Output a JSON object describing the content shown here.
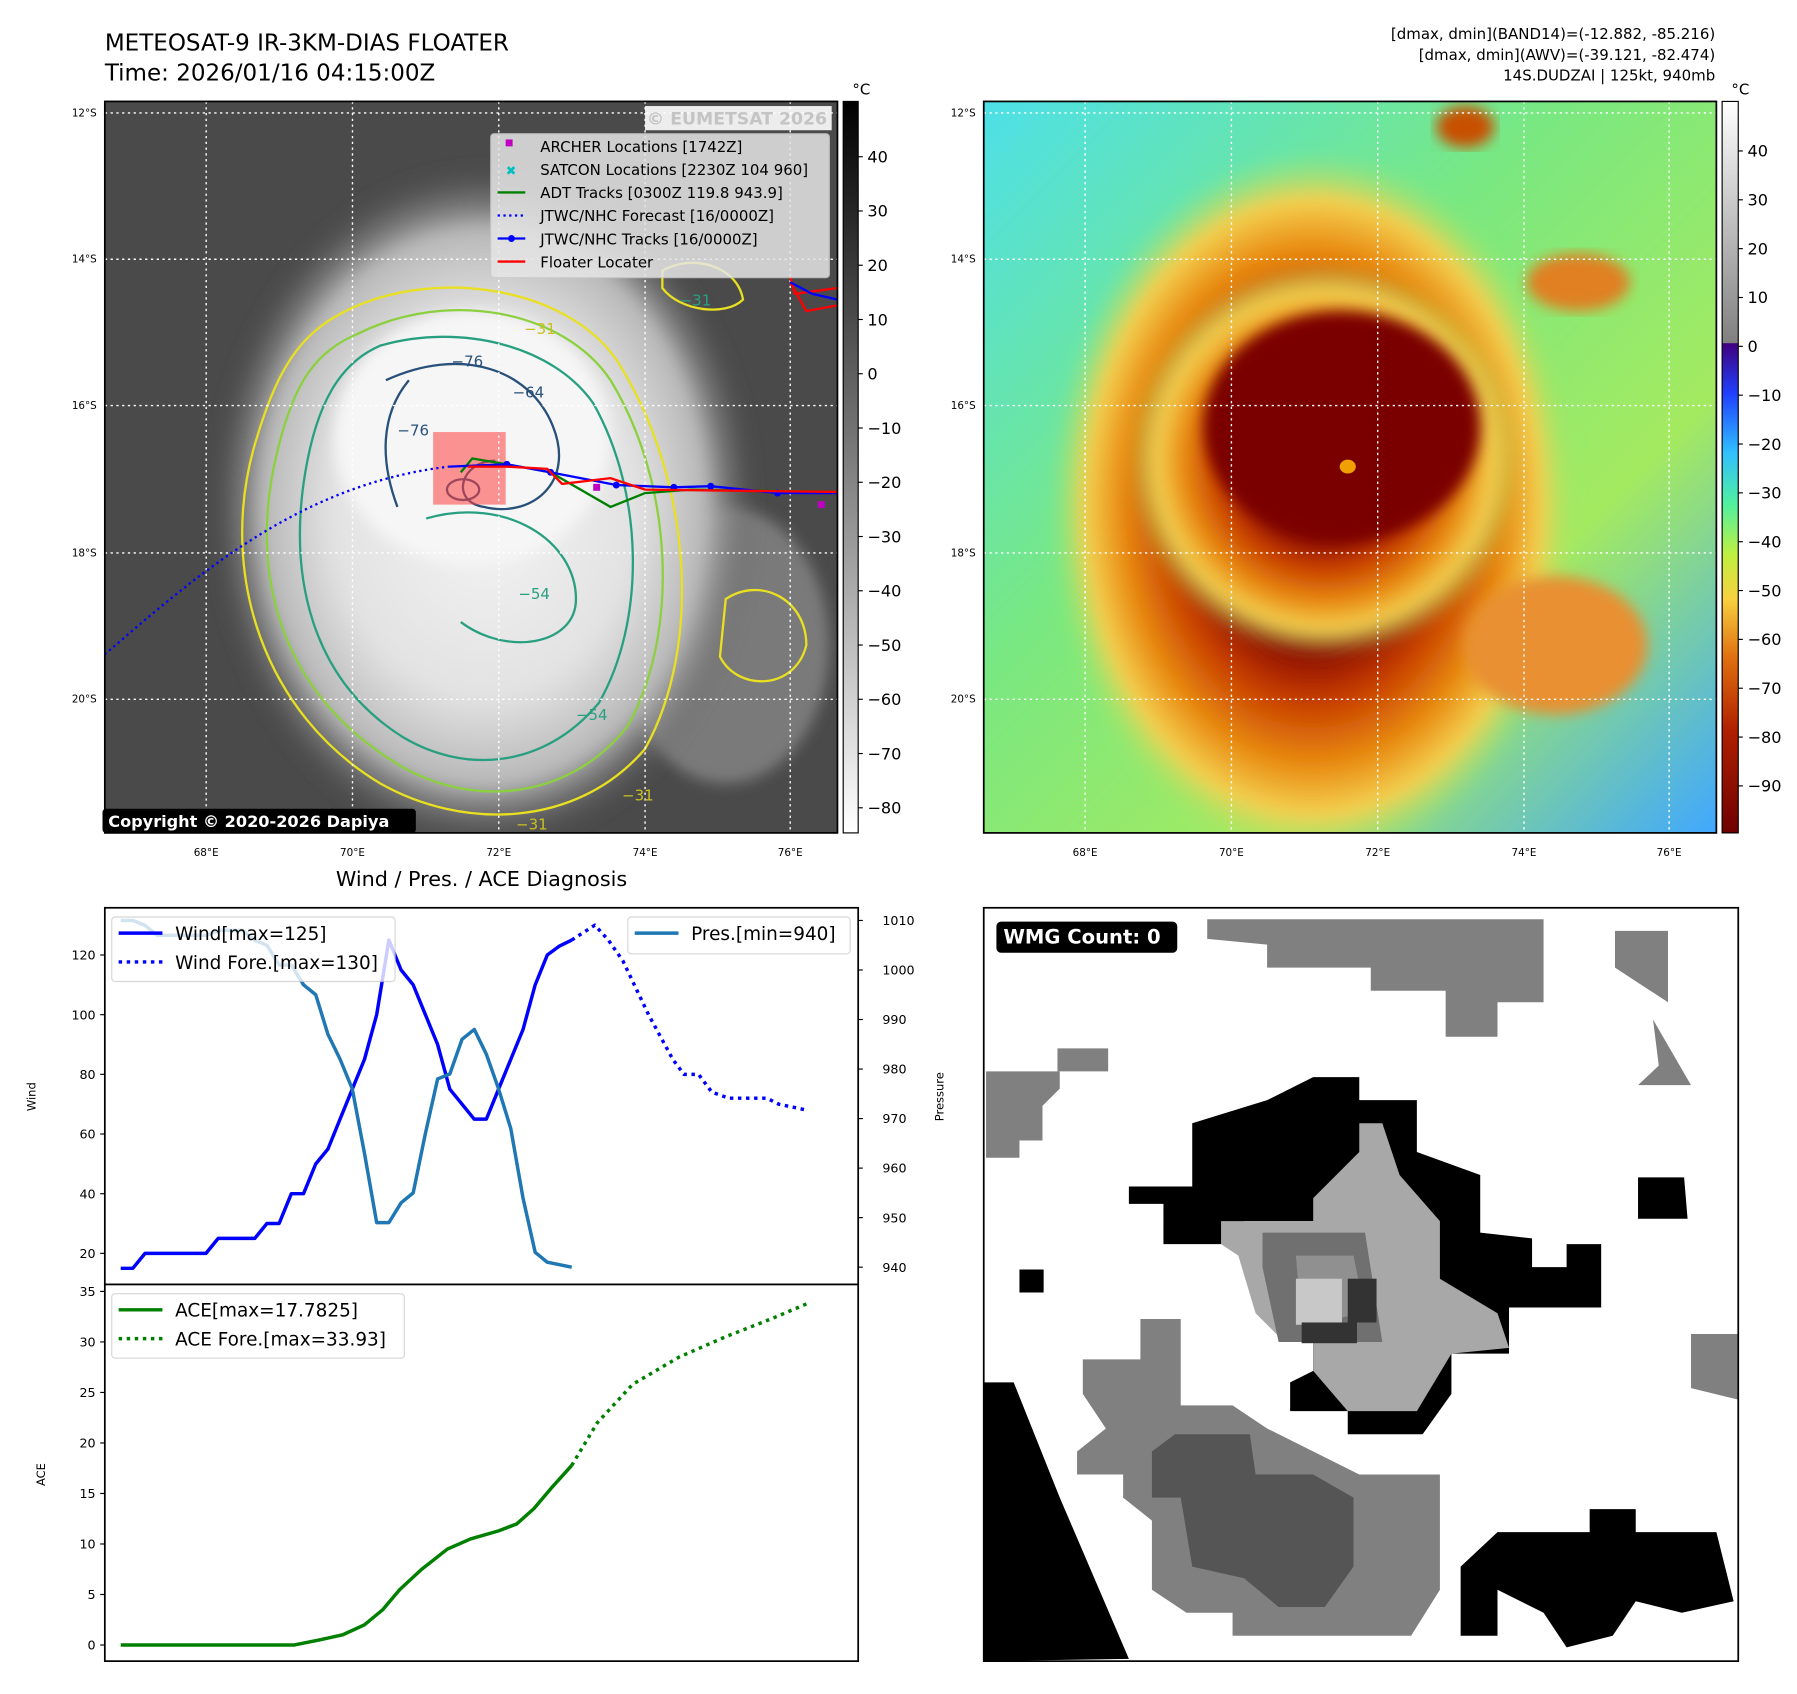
{
  "header": {
    "title_line1": "METEOSAT-9 IR-3KM-DIAS FLOATER",
    "title_line2": "Time: 2026/01/16 04:15:00Z",
    "info_line1": "[dmax, dmin](BAND14)=(-12.882, -85.216)",
    "info_line2": "[dmax, dmin](AWV)=(-39.121, -82.474)",
    "info_line3": "14S.DUDZAI | 125kt, 940mb"
  },
  "ir_map": {
    "lat_labels": [
      "12°S",
      "14°S",
      "16°S",
      "18°S",
      "20°S"
    ],
    "lon_labels": [
      "68°E",
      "70°E",
      "72°E",
      "74°E",
      "76°E"
    ],
    "watermark": "© EUMETSAT 2026",
    "copyright": "Copyright © 2020-2026 Dapiya",
    "contour_labels": [
      "−76",
      "−64",
      "−76",
      "−54",
      "−31",
      "−31",
      "−31",
      "−54",
      "−31"
    ],
    "legend": [
      {
        "label": "ARCHER Locations [1742Z]",
        "color": "#c000c0"
      },
      {
        "label": "SATCON Locations [2230Z 104 960]",
        "color": "#00c0c0"
      },
      {
        "label": "ADT Tracks [0300Z 119.8 943.9]",
        "color": "#008000"
      },
      {
        "label": "JTWC/NHC Forecast [16/0000Z]",
        "color": "#0000ff"
      },
      {
        "label": "JTWC/NHC Tracks [16/0000Z]",
        "color": "#0000ff"
      },
      {
        "label": "Floater Locater",
        "color": "#ff0000"
      }
    ],
    "colorbar_unit": "°C",
    "colorbar_ticks": [
      "40",
      "30",
      "20",
      "10",
      "0",
      "−10",
      "−20",
      "−30",
      "−40",
      "−50",
      "−60",
      "−70",
      "−80"
    ]
  },
  "awv_map": {
    "lat_labels": [
      "12°S",
      "14°S",
      "16°S",
      "18°S",
      "20°S"
    ],
    "lon_labels": [
      "68°E",
      "70°E",
      "72°E",
      "74°E",
      "76°E"
    ],
    "colorbar_unit": "°C",
    "colorbar_ticks": [
      "40",
      "30",
      "20",
      "10",
      "0",
      "−10",
      "−20",
      "−30",
      "−40",
      "−50",
      "−60",
      "−70",
      "−80",
      "−90"
    ]
  },
  "wmg": {
    "badge": "WMG Count: 0"
  },
  "chart_data": [
    {
      "type": "line",
      "title": "Wind / Pres. / ACE Diagnosis",
      "ylabel": "Wind",
      "y2label": "Pressure",
      "ylim": [
        12,
        134
      ],
      "y2lim": [
        937,
        1012
      ],
      "yticks": [
        20,
        40,
        60,
        80,
        100,
        120
      ],
      "y2ticks": [
        940,
        950,
        960,
        970,
        980,
        990,
        1000,
        1010
      ],
      "xlim": [
        -1.3,
        60.5
      ],
      "legend_left": [
        "Wind[max=125]",
        "Wind Fore.[max=130]"
      ],
      "legend_right": [
        "Pres.[min=940]"
      ],
      "series": [
        {
          "name": "Wind[max=125]",
          "color": "#0000ff",
          "style": "solid",
          "x": [
            0,
            1,
            2,
            3,
            4,
            5,
            6,
            7,
            8,
            9,
            10,
            11,
            12,
            13,
            14,
            15,
            16,
            17,
            18,
            19,
            20,
            21,
            22,
            23,
            24,
            25,
            26,
            27,
            28,
            29,
            30,
            31,
            32,
            33,
            34,
            35,
            36,
            37
          ],
          "values": [
            15,
            15,
            20,
            20,
            20,
            20,
            20,
            20,
            25,
            25,
            25,
            25,
            30,
            30,
            40,
            40,
            50,
            55,
            65,
            75,
            85,
            100,
            125,
            115,
            110,
            100,
            90,
            75,
            70,
            65,
            65,
            75,
            85,
            95,
            110,
            120,
            123,
            125
          ]
        },
        {
          "name": "Wind Fore.[max=130]",
          "color": "#0000ff",
          "style": "dotted",
          "x": [
            37,
            38.9,
            40,
            41.2,
            43.3,
            45.3,
            46.2,
            47.4,
            48.5,
            49.9,
            51.9,
            53,
            54,
            56.3
          ],
          "values": [
            125,
            130,
            125,
            118,
            100,
            85,
            80,
            80,
            74,
            72,
            72,
            72,
            70,
            68
          ]
        },
        {
          "name": "Pres.[min=940]",
          "color": "#1f77b4",
          "style": "solid",
          "axis": "y2",
          "x": [
            0,
            1,
            2,
            3,
            4,
            5,
            6,
            7,
            8,
            9,
            10,
            11,
            12,
            13,
            14,
            15,
            16,
            17,
            18,
            19,
            20,
            21,
            22,
            23,
            24,
            25,
            26,
            27,
            28,
            29,
            30,
            31,
            32,
            33,
            34,
            35,
            36,
            37
          ],
          "values": [
            1010,
            1010,
            1009,
            1007,
            1007,
            1007,
            1007,
            1007,
            1008,
            1008,
            1008,
            1006,
            1005,
            1001,
            1001,
            997,
            995,
            987,
            982,
            976,
            963,
            949,
            949,
            953,
            955,
            967,
            978,
            979,
            986,
            988,
            983,
            976,
            968,
            954,
            943,
            941,
            940.5,
            940
          ]
        }
      ]
    },
    {
      "type": "line",
      "ylabel": "ACE",
      "ylim": [
        -1.5,
        35
      ],
      "yticks": [
        0,
        5,
        10,
        15,
        20,
        25,
        30,
        35
      ],
      "xlim": [
        -1.3,
        60.5
      ],
      "legend": [
        "ACE[max=17.7825]",
        "ACE Fore.[max=33.93]"
      ],
      "series": [
        {
          "name": "ACE[max=17.7825]",
          "color": "#008000",
          "style": "solid",
          "x": [
            0,
            4,
            8,
            12,
            14.2,
            16.3,
            18.2,
            20,
            21.5,
            22.9,
            24.7,
            26.8,
            28.7,
            31,
            32.5,
            33.9,
            35.3,
            37
          ],
          "values": [
            0,
            0,
            0,
            0,
            0,
            0.5,
            1,
            2,
            3.5,
            5.5,
            7.5,
            9.5,
            10.5,
            11.3,
            12,
            13.5,
            15.5,
            17.78
          ]
        },
        {
          "name": "ACE Fore.[max=33.93]",
          "color": "#008000",
          "style": "dotted",
          "x": [
            37,
            39.1,
            42,
            45.8,
            49.6,
            53.4,
            56.6
          ],
          "values": [
            17.78,
            22,
            25.8,
            28.5,
            30.5,
            32.3,
            33.93
          ]
        }
      ]
    }
  ]
}
